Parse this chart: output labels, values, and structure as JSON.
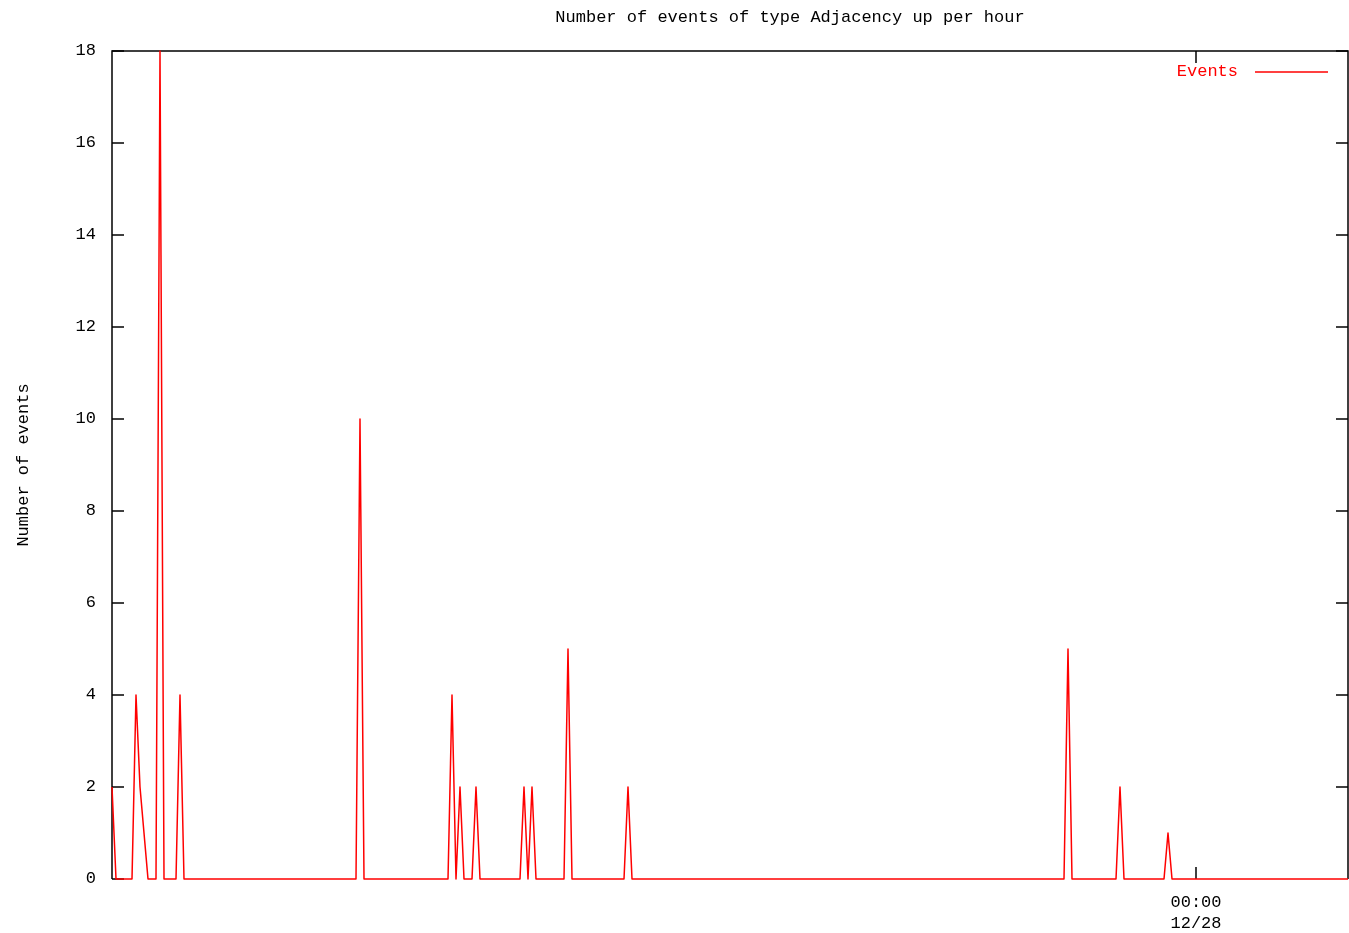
{
  "chart_data": {
    "type": "line",
    "title": "Number of events of type Adjacency up per hour",
    "ylabel": "Number of events",
    "categories": [
      null,
      null,
      null,
      null,
      null,
      null,
      null,
      null,
      null,
      null,
      null,
      null,
      null,
      null,
      null,
      null,
      null,
      null,
      null,
      null,
      null,
      null,
      null,
      null,
      null,
      null,
      null,
      null,
      null,
      null,
      null,
      null,
      null,
      null,
      null,
      null,
      null,
      null,
      null,
      null,
      null,
      null,
      null,
      null,
      null,
      null,
      null,
      null,
      null,
      null,
      null,
      null,
      null,
      null,
      null,
      null,
      null,
      null,
      null,
      null,
      null,
      null,
      null,
      null,
      null,
      null,
      null,
      null,
      null,
      null,
      null,
      null,
      null,
      null,
      null,
      null,
      null,
      null,
      null,
      null,
      null,
      null,
      null,
      null,
      null,
      null,
      null,
      null,
      null,
      null,
      null,
      null,
      null,
      null,
      null,
      null,
      null,
      null,
      null,
      null,
      null,
      null,
      null,
      null,
      null,
      null,
      null,
      null,
      null,
      null,
      null,
      null,
      null,
      null,
      null,
      null,
      null,
      null,
      null,
      null,
      null,
      null,
      null,
      null,
      null,
      null,
      null,
      null,
      null,
      null,
      null,
      null,
      null,
      null,
      null,
      null,
      null,
      null,
      null,
      null,
      null,
      null,
      null,
      null,
      null,
      null,
      null,
      null,
      null,
      null,
      null,
      null,
      null,
      null,
      null,
      null,
      null,
      null,
      null,
      null,
      null,
      null,
      null,
      null,
      null,
      null,
      null,
      null,
      null,
      null,
      null,
      null,
      null,
      null,
      null,
      null,
      null,
      null,
      null,
      null,
      null,
      null,
      null,
      null,
      null,
      null,
      null,
      null,
      null,
      null,
      null,
      null,
      null,
      null,
      null,
      null,
      null,
      null,
      null,
      null,
      null,
      null,
      null,
      null,
      null,
      null,
      null,
      null,
      null,
      null,
      null,
      null,
      null,
      null,
      null,
      null,
      null,
      null,
      null,
      null,
      null,
      null,
      null,
      null,
      null,
      null,
      null,
      null,
      null,
      null,
      null,
      null,
      null,
      null,
      null,
      null,
      null,
      null,
      null,
      null,
      null,
      null,
      null,
      null,
      null,
      null,
      null,
      null,
      null,
      null,
      null,
      null,
      null,
      null,
      null,
      null,
      null,
      null,
      null,
      null,
      null,
      null,
      null,
      null,
      null,
      null,
      null,
      null,
      null,
      null,
      null,
      "00:00\n12/28",
      null,
      null,
      null,
      null,
      null,
      null,
      null,
      null,
      null,
      null,
      null,
      null,
      null,
      null,
      null,
      null,
      null,
      null,
      null,
      null,
      null,
      null,
      null,
      null,
      null,
      null,
      null,
      null,
      null,
      null,
      null,
      null,
      null,
      null,
      null,
      null,
      null,
      null
    ],
    "series": [
      {
        "name": "Events",
        "color": "#ff0000",
        "values": [
          2,
          0,
          0,
          0,
          0,
          0,
          4,
          2,
          1,
          0,
          0,
          0,
          18,
          0,
          0,
          0,
          0,
          4,
          0,
          0,
          0,
          0,
          0,
          0,
          0,
          0,
          0,
          0,
          0,
          0,
          0,
          0,
          0,
          0,
          0,
          0,
          0,
          0,
          0,
          0,
          0,
          0,
          0,
          0,
          0,
          0,
          0,
          0,
          0,
          0,
          0,
          0,
          0,
          0,
          0,
          0,
          0,
          0,
          0,
          0,
          0,
          0,
          10,
          0,
          0,
          0,
          0,
          0,
          0,
          0,
          0,
          0,
          0,
          0,
          0,
          0,
          0,
          0,
          0,
          0,
          0,
          0,
          0,
          0,
          0,
          4,
          0,
          2,
          0,
          0,
          0,
          2,
          0,
          0,
          0,
          0,
          0,
          0,
          0,
          0,
          0,
          0,
          0,
          2,
          0,
          2,
          0,
          0,
          0,
          0,
          0,
          0,
          0,
          0,
          5,
          0,
          0,
          0,
          0,
          0,
          0,
          0,
          0,
          0,
          0,
          0,
          0,
          0,
          0,
          2,
          0,
          0,
          0,
          0,
          0,
          0,
          0,
          0,
          0,
          0,
          0,
          0,
          0,
          0,
          0,
          0,
          0,
          0,
          0,
          0,
          0,
          0,
          0,
          0,
          0,
          0,
          0,
          0,
          0,
          0,
          0,
          0,
          0,
          0,
          0,
          0,
          0,
          0,
          0,
          0,
          0,
          0,
          0,
          0,
          0,
          0,
          0,
          0,
          0,
          0,
          0,
          0,
          0,
          0,
          0,
          0,
          0,
          0,
          0,
          0,
          0,
          0,
          0,
          0,
          0,
          0,
          0,
          0,
          0,
          0,
          0,
          0,
          0,
          0,
          0,
          0,
          0,
          0,
          0,
          0,
          0,
          0,
          0,
          0,
          0,
          0,
          0,
          0,
          0,
          0,
          0,
          0,
          0,
          0,
          0,
          0,
          0,
          0,
          0,
          0,
          0,
          0,
          0,
          0,
          0,
          0,
          0,
          0,
          0,
          5,
          0,
          0,
          0,
          0,
          0,
          0,
          0,
          0,
          0,
          0,
          0,
          0,
          2,
          0,
          0,
          0,
          0,
          0,
          0,
          0,
          0,
          0,
          0,
          0,
          1,
          0,
          0,
          0,
          0,
          0,
          0,
          0,
          0,
          0,
          0,
          0,
          0,
          0,
          0,
          0,
          0,
          0,
          0,
          0,
          0,
          0,
          0,
          0,
          0,
          0,
          0,
          0,
          0,
          0,
          0,
          0,
          0,
          0,
          0,
          0,
          0,
          0,
          0,
          0,
          0,
          0,
          0,
          0,
          0,
          0
        ]
      }
    ],
    "ylim": [
      0,
      18
    ],
    "yticks": [
      0,
      2,
      4,
      6,
      8,
      10,
      12,
      14,
      16,
      18
    ],
    "legend": "top right",
    "grid": false
  }
}
